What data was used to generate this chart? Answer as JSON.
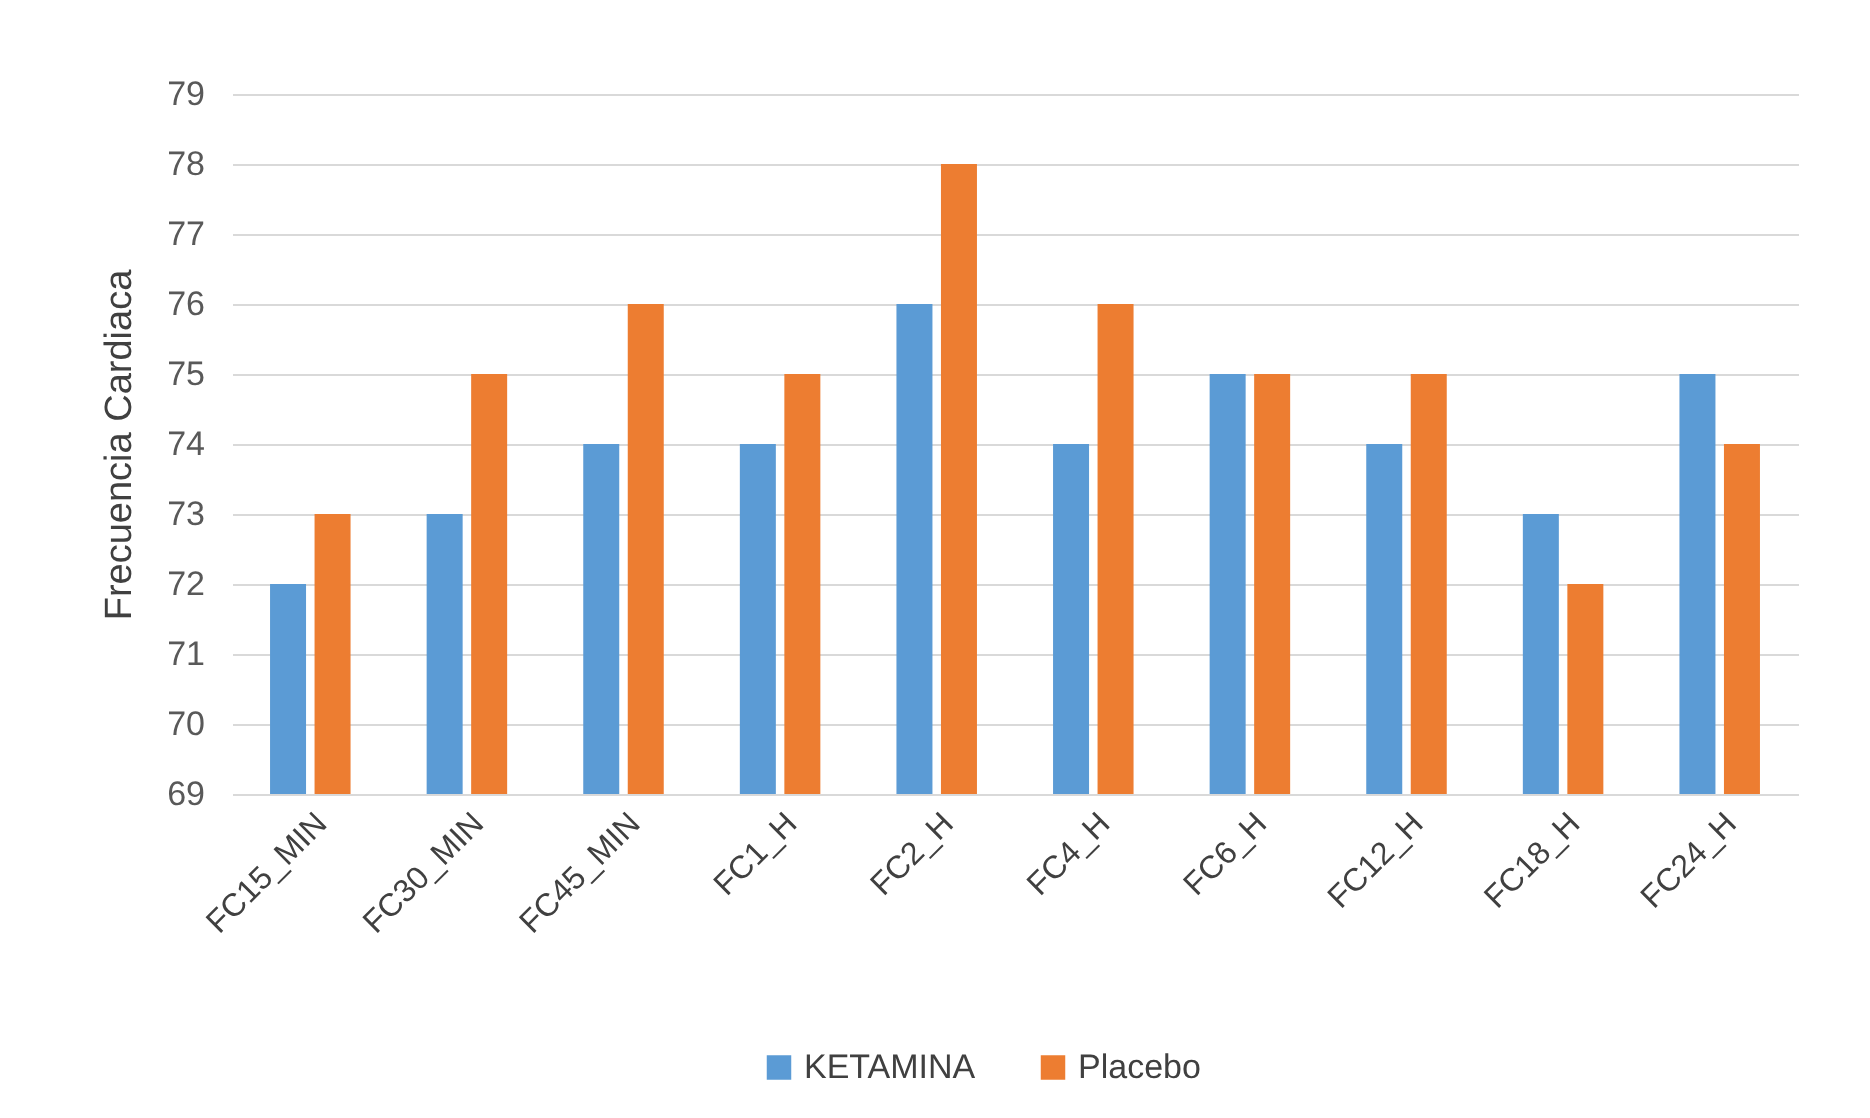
{
  "chart_data": {
    "type": "bar",
    "ylabel": "Frecuencia Cardiaca",
    "categories": [
      "FC15_MIN",
      "FC30_MIN",
      "FC45_MIN",
      "FC1_H",
      "FC2_H",
      "FC4_H",
      "FC6_H",
      "FC12_H",
      "FC18_H",
      "FC24_H"
    ],
    "series": [
      {
        "name": "KETAMINA",
        "color": "#5b9bd5",
        "values": [
          72,
          73,
          74,
          74,
          76,
          74,
          75,
          74,
          73,
          75
        ]
      },
      {
        "name": "Placebo",
        "color": "#ed7d31",
        "values": [
          73,
          75,
          76,
          75,
          78,
          76,
          75,
          75,
          72,
          74
        ]
      }
    ],
    "ylim": [
      69,
      79
    ],
    "yticks": [
      69,
      70,
      71,
      72,
      73,
      74,
      75,
      76,
      77,
      78,
      79
    ],
    "grid": "y",
    "legend": "bottom"
  }
}
